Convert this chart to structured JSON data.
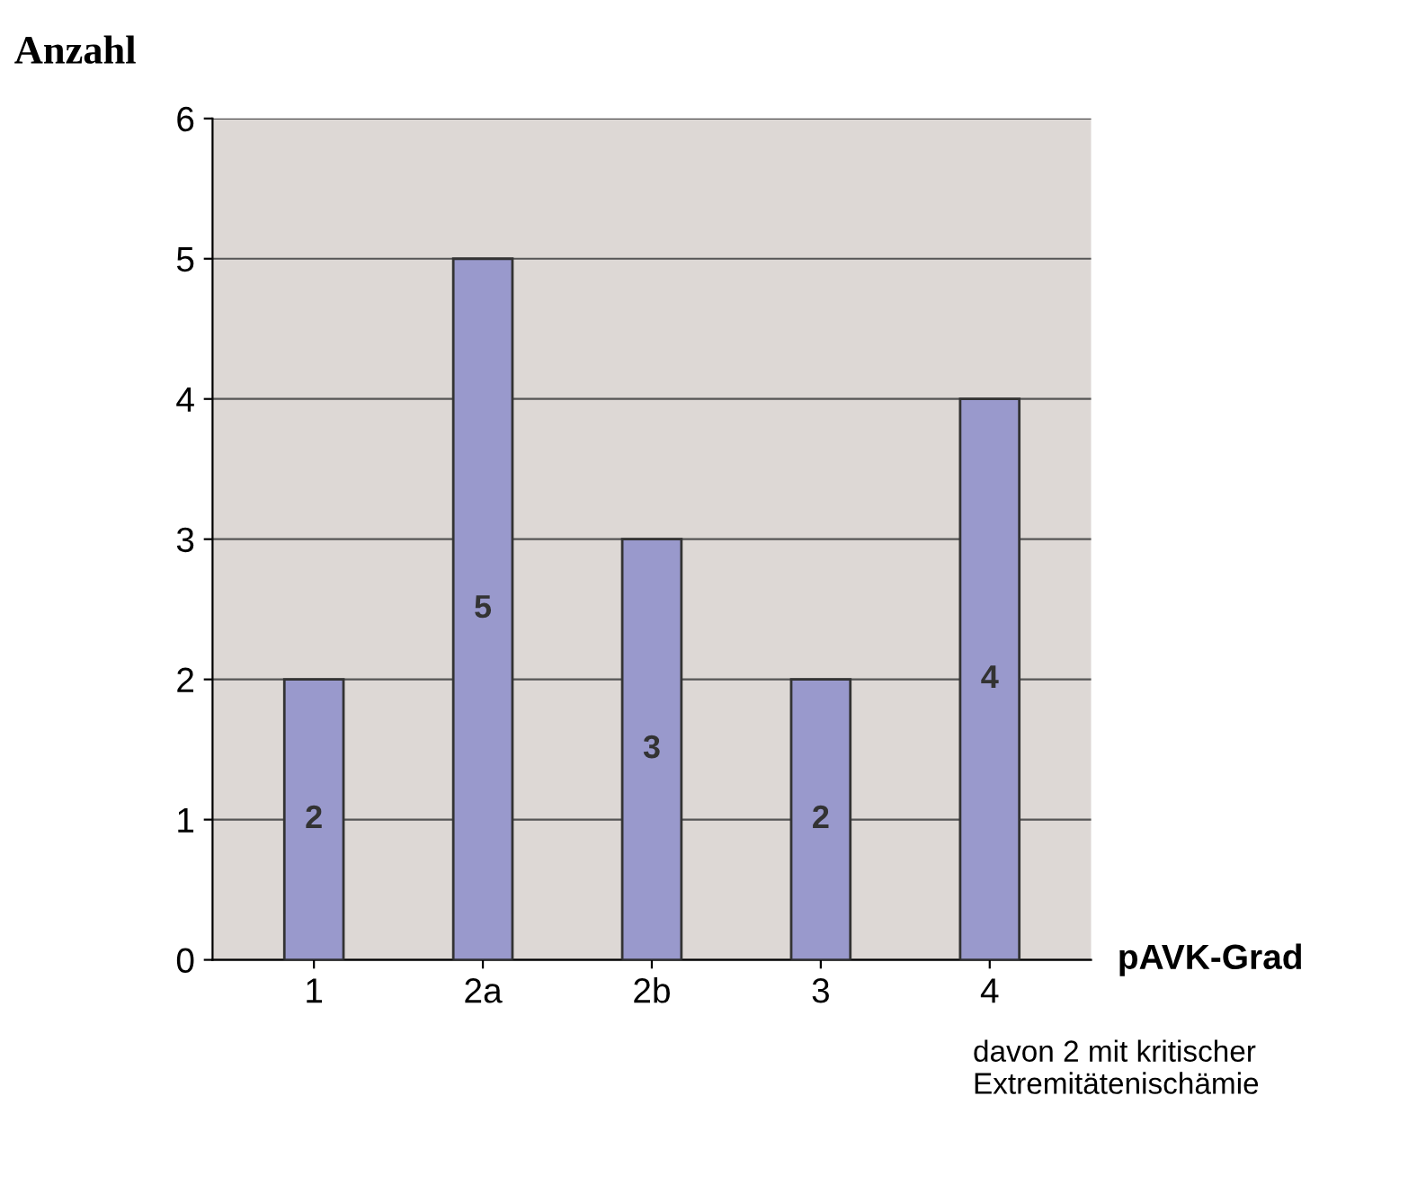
{
  "chart_data": {
    "type": "bar",
    "ylabel": "Anzahl",
    "xlabel": "pAVK-Grad",
    "categories": [
      "1",
      "2a",
      "2b",
      "3",
      "4"
    ],
    "values": [
      2,
      5,
      3,
      2,
      4
    ],
    "color": "#9999cc",
    "ylim": [
      0,
      6
    ],
    "yticks": [
      0,
      1,
      2,
      3,
      4,
      5,
      6
    ],
    "grid": "y",
    "data_labels": true,
    "annotations": [
      "davon 2 mit kritischer\nExtremitätenischämie"
    ]
  }
}
